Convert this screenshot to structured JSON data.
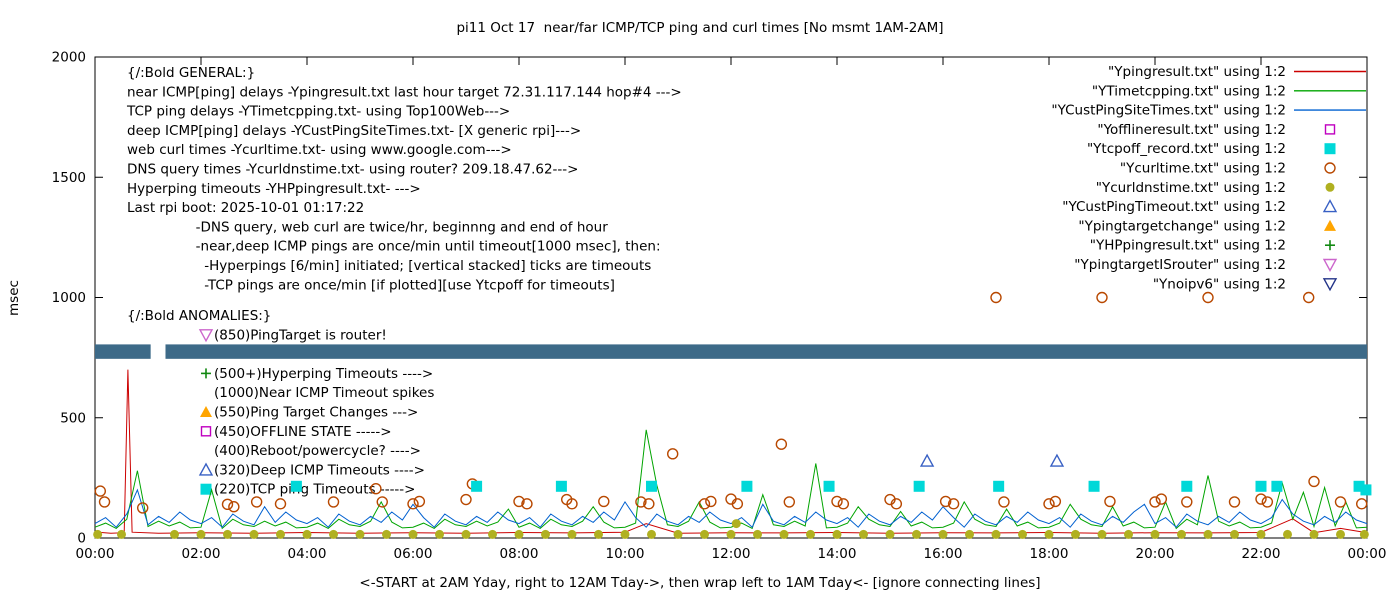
{
  "chart_data": {
    "type": "line",
    "title": "pi11 Oct 17  near/far ICMP/TCP ping and curl times [No msmt 1AM-2AM]",
    "xlabel": "<-START at 2AM Yday, right to 12AM Tday->, then wrap left to 1AM Tday<- [ignore connecting lines]",
    "ylabel": "msec",
    "xlim": [
      0,
      24
    ],
    "ylim": [
      0,
      2000
    ],
    "y_ticks": [
      0,
      500,
      1000,
      1500,
      2000
    ],
    "x_tick_hours": [
      0,
      2,
      4,
      6,
      8,
      10,
      12,
      14,
      16,
      18,
      20,
      22,
      24
    ],
    "x_tick_labels": [
      "00:00",
      "02:00",
      "04:00",
      "06:00",
      "08:00",
      "10:00",
      "12:00",
      "14:00",
      "16:00",
      "18:00",
      "20:00",
      "22:00",
      "00:00"
    ],
    "grid": false,
    "legend_position": "top-right",
    "series": [
      {
        "name": "Ypingresult.txt",
        "type": "line",
        "color": "#cc0000",
        "points": [
          [
            0,
            25
          ],
          [
            0.3,
            20
          ],
          [
            0.55,
            22
          ],
          [
            0.62,
            700
          ],
          [
            0.7,
            24
          ],
          [
            1.2,
            20
          ],
          [
            2,
            22
          ],
          [
            3,
            20
          ],
          [
            4,
            23
          ],
          [
            5,
            20
          ],
          [
            6,
            22
          ],
          [
            7,
            20
          ],
          [
            8,
            23
          ],
          [
            9,
            21
          ],
          [
            10,
            24
          ],
          [
            10.4,
            60
          ],
          [
            11,
            20
          ],
          [
            12,
            22
          ],
          [
            13,
            21
          ],
          [
            14,
            23
          ],
          [
            15,
            20
          ],
          [
            16,
            22
          ],
          [
            17,
            21
          ],
          [
            18,
            23
          ],
          [
            19,
            20
          ],
          [
            20,
            22
          ],
          [
            21,
            21
          ],
          [
            22,
            23
          ],
          [
            22.6,
            80
          ],
          [
            23,
            22
          ],
          [
            23.5,
            40
          ],
          [
            24,
            22
          ]
        ]
      },
      {
        "name": "YTimetcpping.txt",
        "type": "line",
        "color": "#00a400",
        "x0": 0,
        "dx": 0.2,
        "values": [
          45,
          62,
          40,
          78,
          280,
          48,
          70,
          50,
          66,
          42,
          45,
          200,
          40,
          78,
          55,
          48,
          70,
          50,
          66,
          42,
          45,
          62,
          40,
          78,
          55,
          48,
          70,
          150,
          66,
          42,
          45,
          62,
          40,
          78,
          55,
          48,
          70,
          50,
          66,
          120,
          45,
          62,
          40,
          78,
          55,
          48,
          70,
          130,
          66,
          42,
          45,
          62,
          450,
          220,
          55,
          48,
          70,
          150,
          66,
          42,
          45,
          62,
          40,
          180,
          55,
          48,
          70,
          50,
          310,
          42,
          45,
          62,
          130,
          78,
          55,
          48,
          110,
          50,
          66,
          42,
          45,
          62,
          150,
          78,
          55,
          48,
          120,
          50,
          66,
          42,
          45,
          62,
          140,
          78,
          55,
          48,
          130,
          50,
          66,
          42,
          45,
          150,
          40,
          78,
          55,
          260,
          70,
          50,
          66,
          42,
          45,
          62,
          230,
          78,
          190,
          48,
          210,
          50,
          150,
          42,
          45
        ]
      },
      {
        "name": "YCustPingSiteTimes.txt",
        "type": "line",
        "color": "#0060d0",
        "x0": 0,
        "dx": 0.2,
        "values": [
          60,
          85,
          45,
          100,
          200,
          55,
          90,
          65,
          108,
          75,
          60,
          85,
          45,
          100,
          70,
          55,
          130,
          65,
          108,
          75,
          60,
          85,
          45,
          100,
          70,
          55,
          90,
          65,
          108,
          75,
          140,
          85,
          45,
          100,
          70,
          55,
          90,
          65,
          108,
          75,
          60,
          85,
          45,
          100,
          70,
          55,
          90,
          65,
          108,
          75,
          150,
          85,
          45,
          100,
          70,
          55,
          90,
          65,
          108,
          75,
          60,
          85,
          45,
          140,
          70,
          55,
          90,
          65,
          108,
          75,
          60,
          85,
          45,
          100,
          70,
          55,
          90,
          65,
          108,
          75,
          130,
          85,
          45,
          100,
          70,
          55,
          90,
          65,
          108,
          75,
          60,
          85,
          45,
          100,
          70,
          55,
          90,
          65,
          108,
          140,
          60,
          85,
          45,
          100,
          70,
          55,
          90,
          65,
          108,
          75,
          60,
          85,
          160,
          100,
          70,
          55,
          90,
          65,
          108,
          75,
          60
        ]
      },
      {
        "name": "Ycurltime.txt",
        "type": "scatter",
        "marker": "circle-open",
        "color": "#b84800",
        "points": [
          [
            0.1,
            195
          ],
          [
            0.18,
            150
          ],
          [
            0.9,
            125
          ],
          [
            2.5,
            140
          ],
          [
            2.62,
            130
          ],
          [
            3.05,
            150
          ],
          [
            3.5,
            142
          ],
          [
            4.5,
            150
          ],
          [
            5.3,
            205
          ],
          [
            5.42,
            150
          ],
          [
            6.0,
            142
          ],
          [
            6.12,
            152
          ],
          [
            7.0,
            160
          ],
          [
            7.12,
            225
          ],
          [
            8.0,
            152
          ],
          [
            8.15,
            142
          ],
          [
            8.9,
            160
          ],
          [
            9.0,
            142
          ],
          [
            9.6,
            152
          ],
          [
            10.3,
            150
          ],
          [
            10.45,
            142
          ],
          [
            10.9,
            350
          ],
          [
            11.5,
            142
          ],
          [
            11.62,
            152
          ],
          [
            12.0,
            162
          ],
          [
            12.12,
            142
          ],
          [
            12.95,
            390
          ],
          [
            13.1,
            150
          ],
          [
            14.0,
            152
          ],
          [
            14.12,
            142
          ],
          [
            15.0,
            160
          ],
          [
            15.12,
            142
          ],
          [
            16.05,
            152
          ],
          [
            16.2,
            142
          ],
          [
            17.0,
            1000
          ],
          [
            17.15,
            150
          ],
          [
            18.0,
            142
          ],
          [
            18.12,
            152
          ],
          [
            19.0,
            1000
          ],
          [
            19.15,
            152
          ],
          [
            20.0,
            150
          ],
          [
            20.12,
            162
          ],
          [
            20.6,
            150
          ],
          [
            21.0,
            1000
          ],
          [
            21.5,
            150
          ],
          [
            22.0,
            162
          ],
          [
            22.12,
            150
          ],
          [
            22.9,
            1000
          ],
          [
            23.0,
            235
          ],
          [
            23.5,
            150
          ],
          [
            23.9,
            142
          ]
        ]
      },
      {
        "name": "Ycurldnstime.txt",
        "type": "scatter",
        "marker": "circle-filled",
        "color": "#b0b020",
        "y": 15,
        "xs": [
          0.05,
          0.5,
          1.5,
          2,
          2.5,
          3,
          3.5,
          4,
          4.5,
          5,
          5.5,
          6,
          6.5,
          7,
          7.5,
          8,
          8.5,
          9,
          9.5,
          10,
          10.5,
          11,
          11.5,
          12,
          12.5,
          13,
          13.5,
          14,
          14.5,
          15,
          15.5,
          16,
          16.5,
          17,
          17.5,
          18,
          18.5,
          19,
          19.5,
          20,
          20.5,
          21,
          21.5,
          22,
          22.5,
          23,
          23.5,
          23.95
        ],
        "points": [
          [
            12.1,
            60
          ]
        ]
      },
      {
        "name": "Ytcpoff_record.txt",
        "type": "scatter",
        "marker": "square-filled",
        "color": "#00d8d8",
        "points": [
          [
            3.8,
            215
          ],
          [
            7.2,
            215
          ],
          [
            8.8,
            215
          ],
          [
            10.5,
            215
          ],
          [
            12.3,
            215
          ],
          [
            13.85,
            215
          ],
          [
            15.55,
            215
          ],
          [
            17.05,
            215
          ],
          [
            18.85,
            215
          ],
          [
            20.6,
            215
          ],
          [
            22.0,
            215
          ],
          [
            22.3,
            215
          ],
          [
            23.85,
            215
          ],
          [
            23.98,
            200
          ]
        ]
      },
      {
        "name": "YCustPingTimeout.txt",
        "type": "scatter",
        "marker": "triangle-open",
        "color": "#3860c4",
        "points": [
          [
            15.7,
            320
          ],
          [
            18.15,
            320
          ]
        ]
      },
      {
        "name": "Yofflineresult.txt",
        "type": "scatter",
        "marker": "square-open",
        "color": "#c000c0",
        "points": []
      },
      {
        "name": "Ypingtargetchange",
        "type": "scatter",
        "marker": "triangle-filled",
        "color": "#ffa500",
        "points": []
      },
      {
        "name": "YHPpingresult.txt",
        "type": "scatter",
        "marker": "plus",
        "color": "#118811",
        "points": []
      },
      {
        "name": "YpingtargetISrouter",
        "type": "scatter",
        "marker": "triangle-down-open",
        "color": "#cc66cc",
        "points": []
      },
      {
        "name": "Ynoipv6",
        "type": "band",
        "marker": "triangle-down-open",
        "color": "#223388",
        "band_color": "#3d6a88",
        "y": 775,
        "half_height": 30,
        "segments": [
          [
            0,
            1.05
          ],
          [
            1.33,
            24
          ]
        ]
      }
    ],
    "legend": [
      {
        "label": "\"Ypingresult.txt\" using 1:2",
        "sample": "line",
        "color": "#cc0000"
      },
      {
        "label": "\"YTimetcpping.txt\" using 1:2",
        "sample": "line",
        "color": "#00a400"
      },
      {
        "label": "\"YCustPingSiteTimes.txt\" using 1:2",
        "sample": "line",
        "color": "#0060d0"
      },
      {
        "label": "\"Yofflineresult.txt\" using 1:2",
        "sample": "square-open",
        "color": "#c000c0"
      },
      {
        "label": "\"Ytcpoff_record.txt\" using 1:2",
        "sample": "square-filled",
        "color": "#00d8d8"
      },
      {
        "label": "\"Ycurltime.txt\" using 1:2",
        "sample": "circle-open",
        "color": "#b84800"
      },
      {
        "label": "\"Ycurldnstime.txt\" using 1:2",
        "sample": "circle-filled",
        "color": "#b0b020"
      },
      {
        "label": "\"YCustPingTimeout.txt\" using 1:2",
        "sample": "triangle-open",
        "color": "#3860c4"
      },
      {
        "label": "\"Ypingtargetchange\" using 1:2",
        "sample": "triangle-filled",
        "color": "#ffa500"
      },
      {
        "label": "\"YHPpingresult.txt\" using 1:2",
        "sample": "plus",
        "color": "#118811"
      },
      {
        "label": "\"YpingtargetISrouter\" using 1:2",
        "sample": "triangle-down-open",
        "color": "#cc66cc"
      },
      {
        "label": "\"Ynoipv6\" using 1:2",
        "sample": "triangle-down-open",
        "color": "#223388"
      }
    ],
    "annotations": {
      "general": [
        "{/:Bold GENERAL:}",
        "near ICMP[ping] delays -Ypingresult.txt last hour target 72.31.117.144 hop#4 --->",
        "TCP ping delays -YTimetcpping.txt- using Top100Web--->",
        "deep ICMP[ping] delays -YCustPingSiteTimes.txt- [X generic rpi]--->",
        "web curl times -Ycurltime.txt- using www.google.com--->",
        "DNS query times -Ycurldnstime.txt- using router? 209.18.47.62--->",
        "Hyperping timeouts -YHPpingresult.txt- --->",
        "Last rpi boot: 2025-10-01 01:17:22",
        "                -DNS query, web curl are twice/hr, beginnng and end of hour",
        "                -near,deep ICMP pings are once/min until timeout[1000 msec], then:",
        "                  -Hyperpings [6/min] initiated; [vertical stacked] ticks are timeouts",
        "                  -TCP pings are once/min [if plotted][use Ytcpoff for timeouts]"
      ],
      "anomalies": [
        {
          "marker": null,
          "color": null,
          "text": "{/:Bold ANOMALIES:}"
        },
        {
          "marker": "triangle-down-open",
          "color": "#cc66cc",
          "text": "(850)PingTarget is router!"
        },
        {
          "marker": null,
          "color": null,
          "text": ""
        },
        {
          "marker": "plus",
          "color": "#118811",
          "text": "(500+)Hyperping Timeouts ---->"
        },
        {
          "marker": null,
          "color": null,
          "text": "(1000)Near ICMP Timeout spikes"
        },
        {
          "marker": "triangle-filled",
          "color": "#ffa500",
          "text": "(550)Ping Target Changes --->"
        },
        {
          "marker": "square-open",
          "color": "#c000c0",
          "text": "(450)OFFLINE STATE ----->"
        },
        {
          "marker": null,
          "color": null,
          "text": "(400)Reboot/powercycle? ---->"
        },
        {
          "marker": "triangle-open",
          "color": "#3860c4",
          "text": "(320)Deep ICMP Timeouts ---->"
        },
        {
          "marker": "square-filled",
          "color": "#00d8d8",
          "text": "(220)TCP ping Timeouts ----->"
        }
      ]
    }
  }
}
